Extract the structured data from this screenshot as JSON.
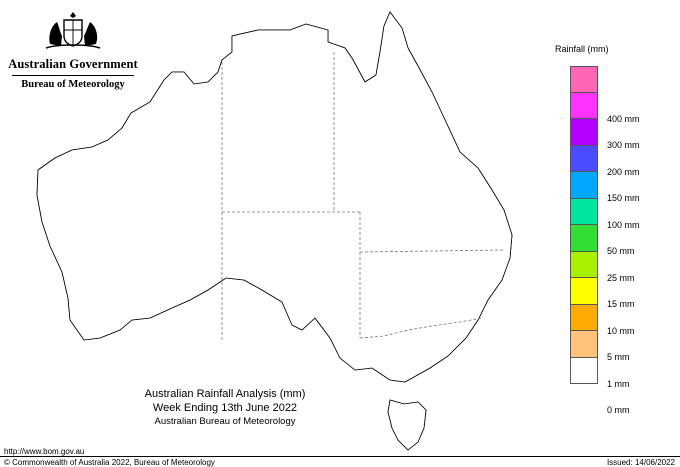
{
  "header": {
    "crest_icon": "coat-of-arms-icon",
    "government": "Australian Government",
    "agency": "Bureau of Meteorology"
  },
  "map": {
    "region": "Australia",
    "state_border_style": "dashed"
  },
  "caption": {
    "line1": "Australian Rainfall Analysis (mm)",
    "line2": "Week Ending 13th June 2022",
    "line3": "Australian Bureau of Meteorology"
  },
  "footer": {
    "url": "http://www.bom.gov.au",
    "copyright": "© Commonwealth of Australia 2022, Bureau of Meteorology",
    "issued": "Issued: 14/06/2022"
  },
  "legend": {
    "title": "Rainfall (mm)",
    "items": [
      {
        "label": "",
        "color": "#ff66b3"
      },
      {
        "label": "400 mm",
        "color": "#ff33ff"
      },
      {
        "label": "300 mm",
        "color": "#b400ff"
      },
      {
        "label": "200 mm",
        "color": "#4b4bff"
      },
      {
        "label": "150 mm",
        "color": "#00a8ff"
      },
      {
        "label": "100 mm",
        "color": "#00e6a0"
      },
      {
        "label": "50 mm",
        "color": "#33dd33"
      },
      {
        "label": "25 mm",
        "color": "#a8f000"
      },
      {
        "label": "15 mm",
        "color": "#ffff00"
      },
      {
        "label": "10 mm",
        "color": "#ffaa00"
      },
      {
        "label": "5 mm",
        "color": "#ffc47a"
      },
      {
        "label": "1 mm",
        "color": "#ffffff"
      },
      {
        "label": "0 mm",
        "color": ""
      }
    ]
  }
}
